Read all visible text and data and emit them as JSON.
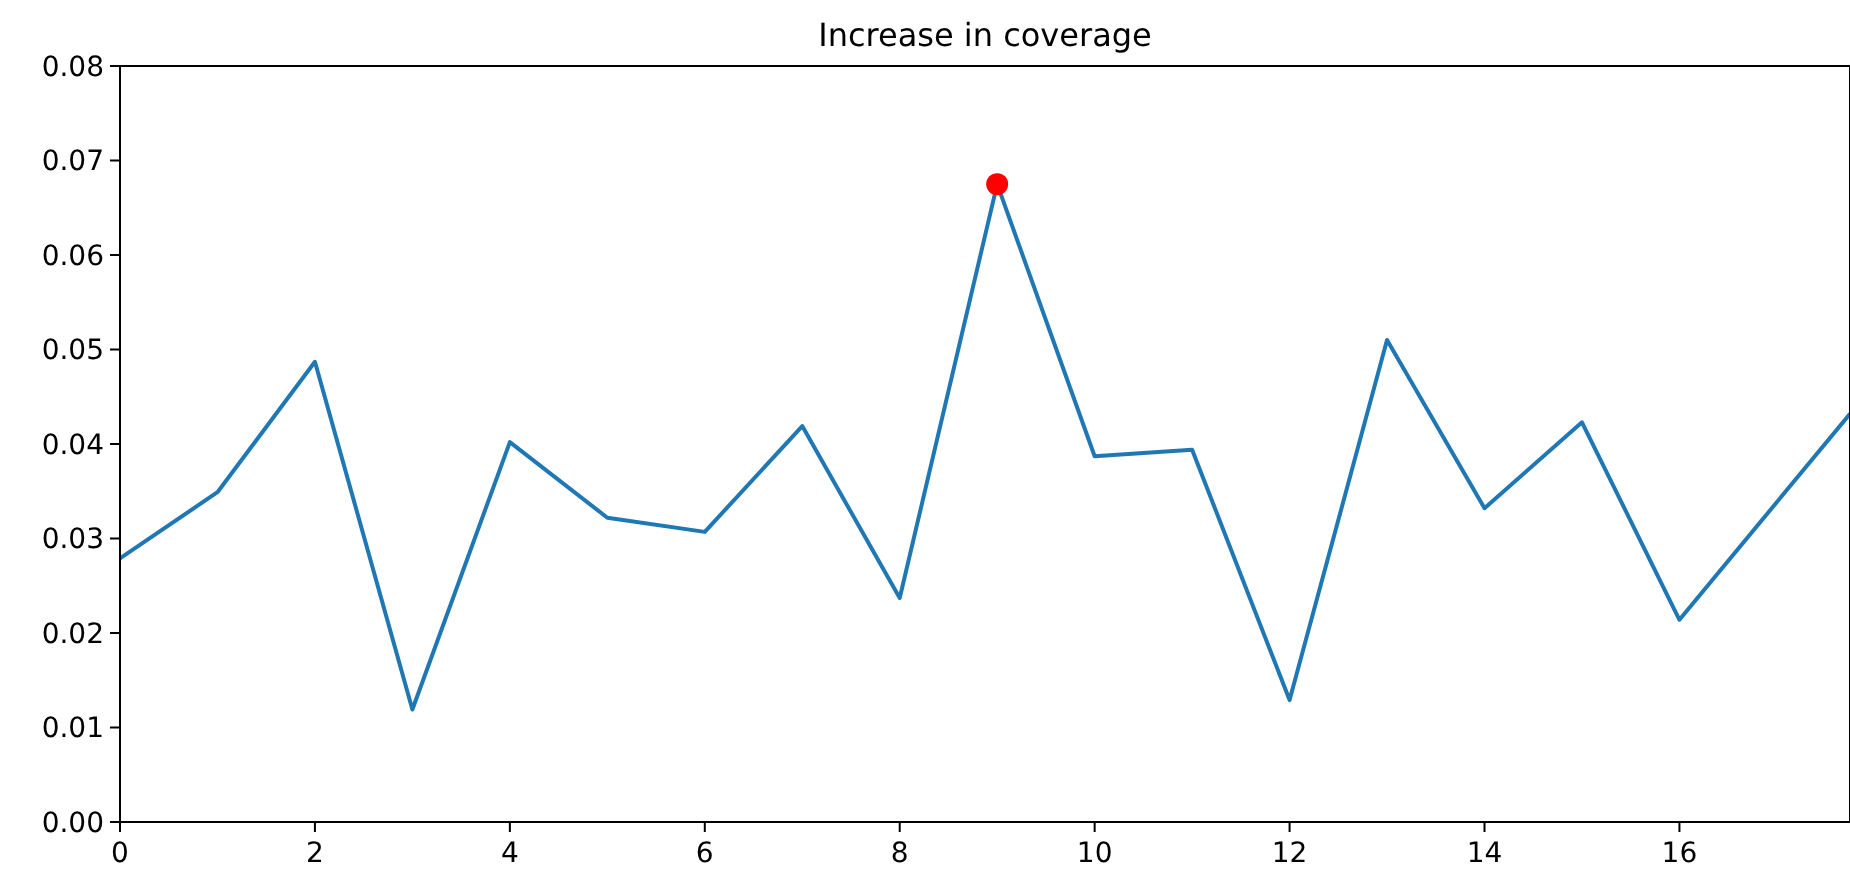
{
  "chart_data": {
    "type": "line",
    "title": "Increase in coverage",
    "xlim": [
      0,
      17.75
    ],
    "xticks": [
      0,
      2,
      4,
      6,
      8,
      10,
      12,
      14,
      16
    ],
    "ylim": [
      0,
      0.08
    ],
    "yticks": [
      {
        "value": 0,
        "label": "0.00"
      },
      {
        "value": 0.01,
        "label": "0.01"
      },
      {
        "value": 0.02,
        "label": "0.02"
      },
      {
        "value": 0.03,
        "label": "0.03"
      },
      {
        "value": 0.04,
        "label": "0.04"
      },
      {
        "value": 0.05,
        "label": "0.05"
      },
      {
        "value": 0.06,
        "label": "0.06"
      },
      {
        "value": 0.07,
        "label": "0.07"
      },
      {
        "value": 0.08,
        "label": "0.08"
      }
    ],
    "grid": false,
    "series": [
      {
        "type": "line",
        "color": "#1f77b4",
        "marker": "none",
        "x": [
          0,
          1,
          2,
          3,
          4,
          5,
          6,
          7,
          8,
          9,
          10,
          11,
          12,
          13,
          14,
          15,
          16,
          17.75
        ],
        "values": [
          0.0279,
          0.0349,
          0.0487,
          0.0119,
          0.0402,
          0.0322,
          0.0307,
          0.0419,
          0.0237,
          0.0675,
          0.0387,
          0.0394,
          0.0129,
          0.051,
          0.0332,
          0.0423,
          0.0214,
          0.0432
        ]
      },
      {
        "type": "scatter",
        "color": "#ff0000",
        "marker": "circle",
        "x": [
          9
        ],
        "values": [
          0.0675
        ]
      }
    ]
  }
}
